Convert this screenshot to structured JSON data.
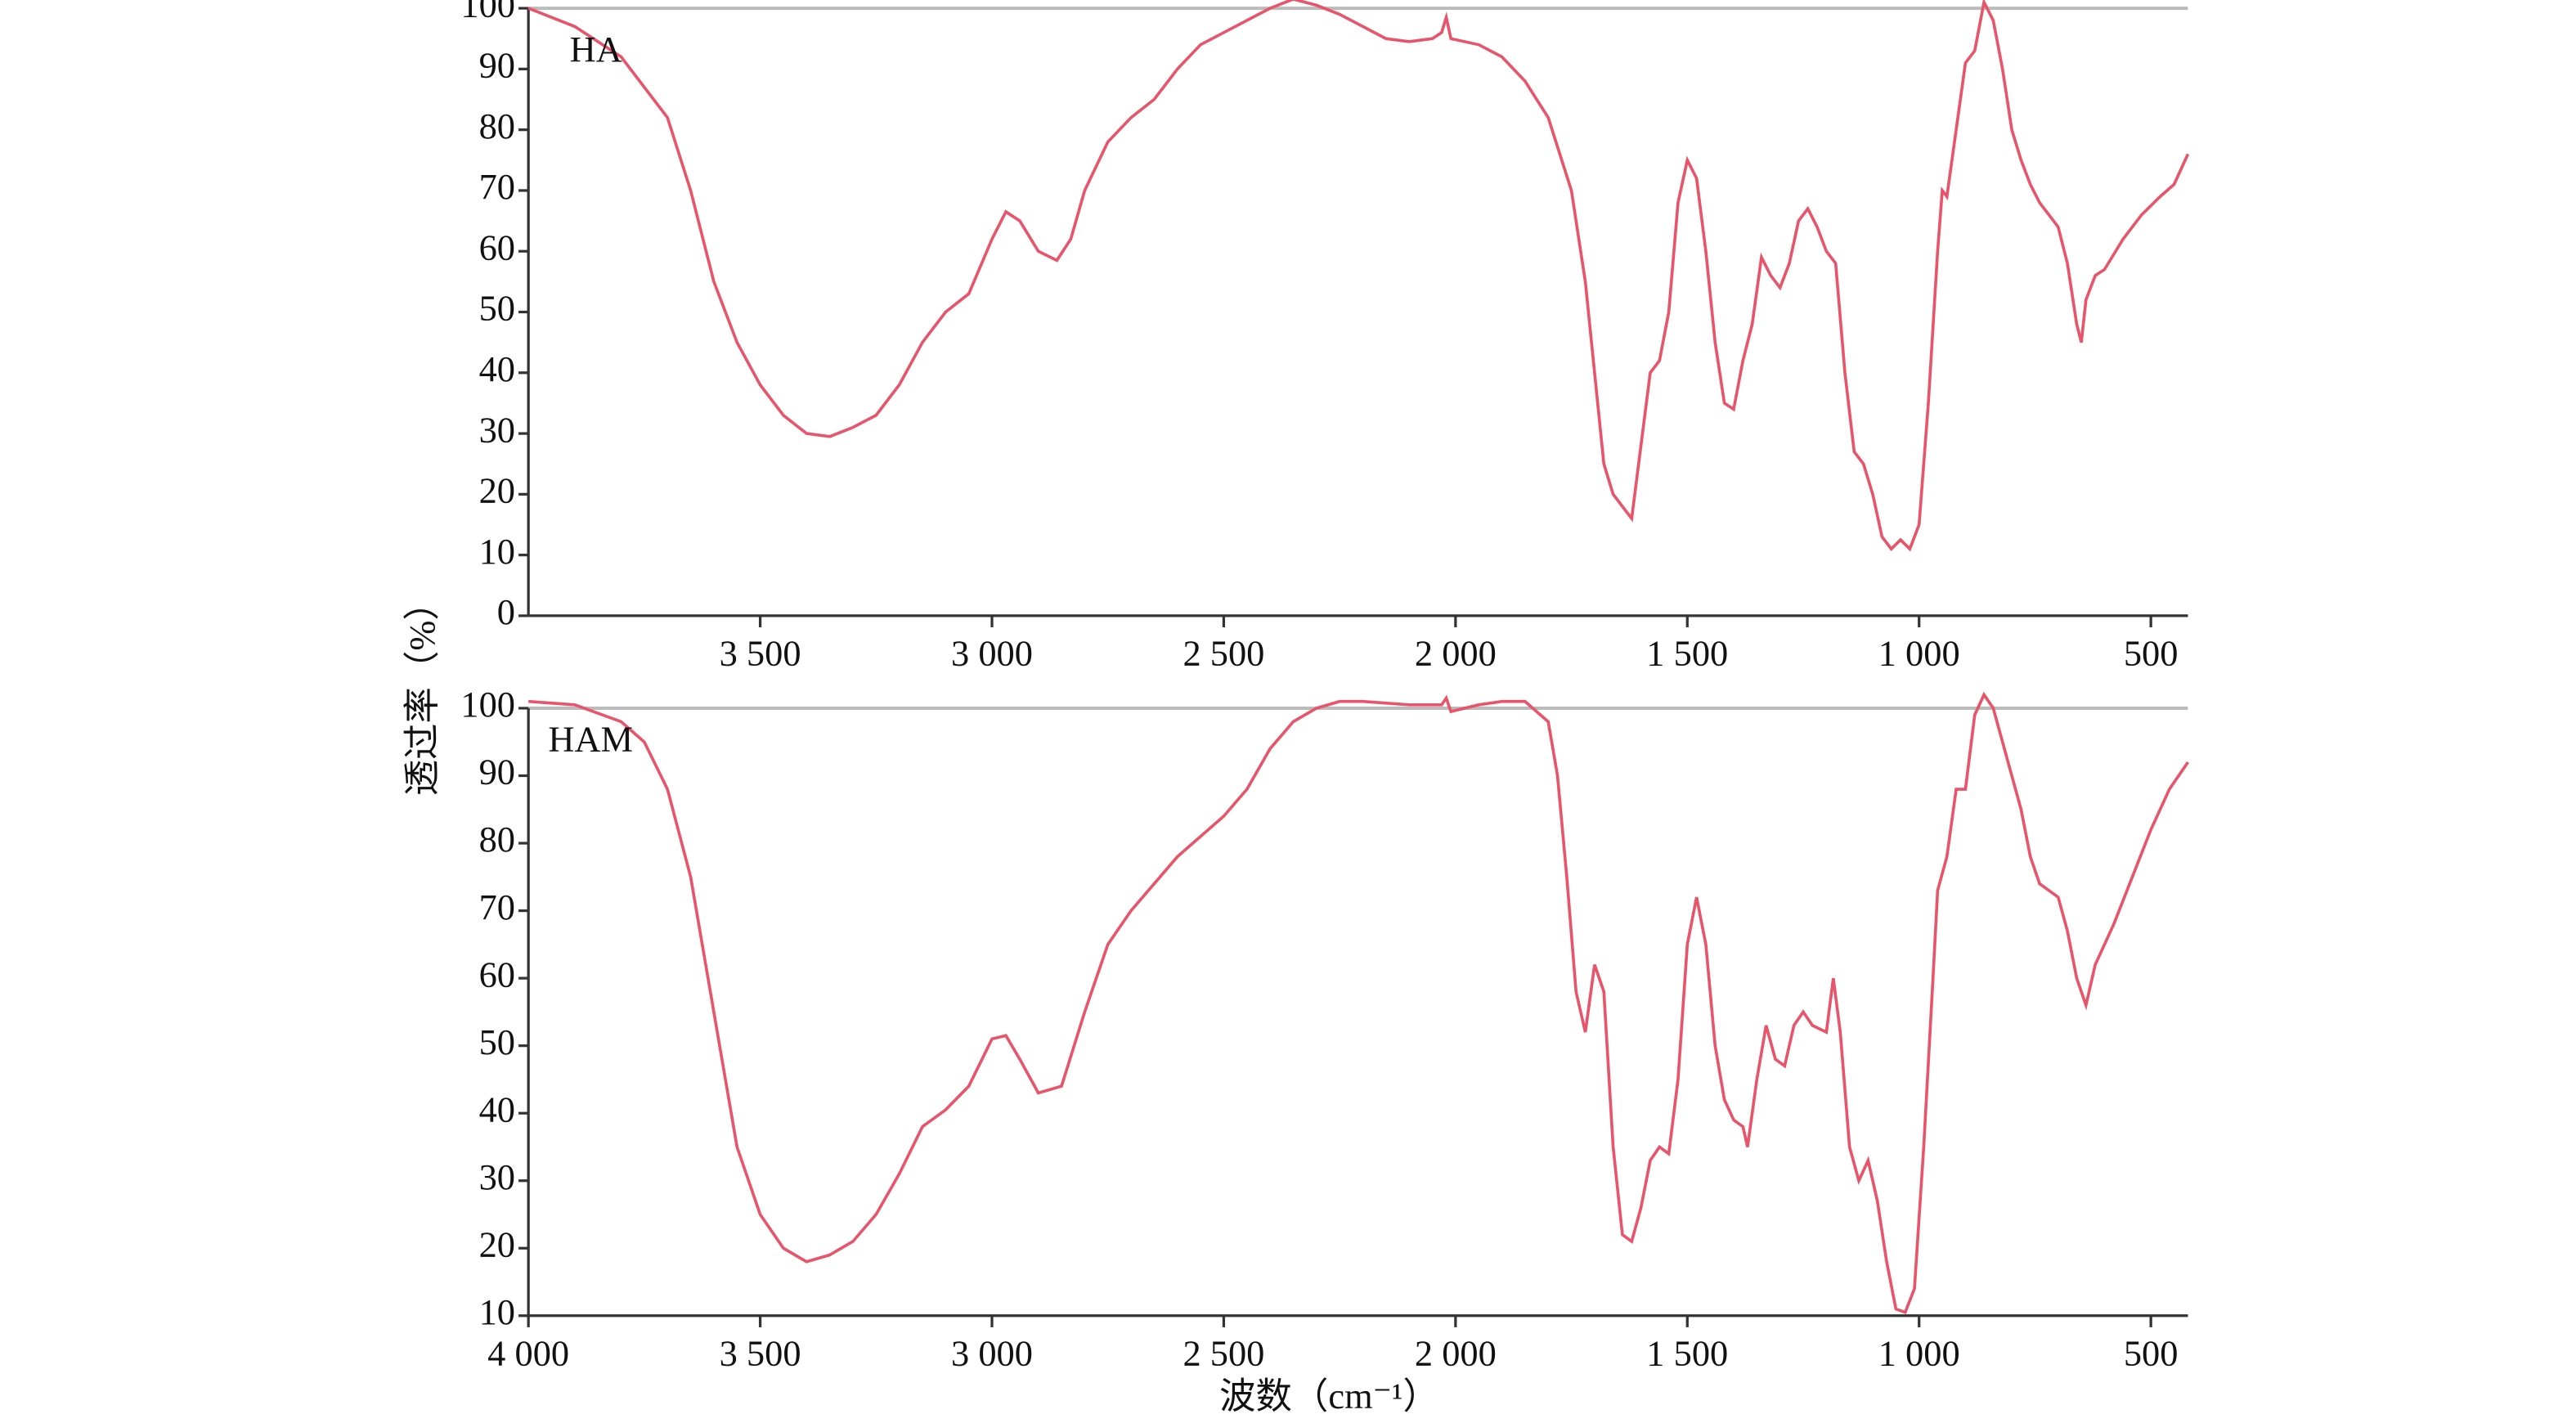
{
  "ylabel": "透过率（%）",
  "xlabel": "波数（cm⁻¹）",
  "chart_data": [
    {
      "type": "line",
      "x": [
        4000,
        3900,
        3800,
        3700,
        3650,
        3600,
        3550,
        3500,
        3450,
        3400,
        3350,
        3300,
        3250,
        3200,
        3150,
        3100,
        3050,
        3000,
        2970,
        2940,
        2900,
        2860,
        2830,
        2800,
        2750,
        2700,
        2650,
        2600,
        2550,
        2500,
        2450,
        2400,
        2350,
        2300,
        2250,
        2200,
        2150,
        2100,
        2050,
        2030,
        2020,
        2010,
        1950,
        1900,
        1850,
        1800,
        1750,
        1720,
        1700,
        1680,
        1660,
        1640,
        1620,
        1600,
        1580,
        1560,
        1540,
        1520,
        1500,
        1480,
        1460,
        1440,
        1420,
        1400,
        1380,
        1360,
        1340,
        1320,
        1300,
        1280,
        1260,
        1240,
        1220,
        1200,
        1180,
        1160,
        1140,
        1120,
        1100,
        1080,
        1060,
        1040,
        1020,
        1000,
        980,
        960,
        950,
        940,
        920,
        900,
        880,
        860,
        840,
        820,
        800,
        780,
        760,
        740,
        720,
        700,
        680,
        660,
        650,
        640,
        620,
        600,
        560,
        520,
        480,
        450,
        420
      ],
      "series": [
        {
          "name": "HA",
          "color": "#e8556a",
          "values": [
            100,
            97,
            92,
            82,
            70,
            55,
            45,
            38,
            33,
            30,
            29.5,
            31,
            33,
            38,
            45,
            50,
            53,
            62,
            66.5,
            65,
            60,
            58.5,
            62,
            70,
            78,
            82,
            85,
            90,
            94,
            96,
            98,
            100,
            101.5,
            100.5,
            99,
            97,
            95,
            94.5,
            95,
            96,
            98.5,
            95,
            94,
            92,
            88,
            82,
            70,
            55,
            40,
            25,
            20,
            18,
            16,
            28,
            40,
            42,
            50,
            68,
            75,
            72,
            60,
            45,
            35,
            34,
            42,
            48,
            59,
            56,
            54,
            58,
            65,
            67,
            64,
            60,
            58,
            40,
            27,
            25,
            20,
            13,
            11,
            12.5,
            11,
            15,
            35,
            60,
            70,
            69,
            80,
            91,
            93,
            101,
            98,
            90,
            80,
            75,
            71,
            68,
            66,
            64,
            58,
            48,
            45,
            52,
            56,
            57,
            62,
            66,
            69,
            71,
            76
          ]
        }
      ],
      "xlim": [
        4000,
        420
      ],
      "ylim": [
        0,
        100
      ],
      "xticks": [
        {
          "value": 3500,
          "label": "3 500"
        },
        {
          "value": 3000,
          "label": "3 000"
        },
        {
          "value": 2500,
          "label": "2 500"
        },
        {
          "value": 2000,
          "label": "2 000"
        },
        {
          "value": 1500,
          "label": "1 500"
        },
        {
          "value": 1000,
          "label": "1 000"
        },
        500
      ],
      "yticks": [
        0,
        10,
        20,
        30,
        40,
        50,
        60,
        70,
        80,
        90,
        100
      ]
    },
    {
      "type": "line",
      "x": [
        4000,
        3900,
        3800,
        3750,
        3700,
        3650,
        3600,
        3550,
        3500,
        3450,
        3400,
        3350,
        3300,
        3250,
        3200,
        3150,
        3100,
        3050,
        3000,
        2970,
        2940,
        2900,
        2850,
        2800,
        2750,
        2700,
        2650,
        2600,
        2550,
        2500,
        2450,
        2400,
        2350,
        2300,
        2250,
        2200,
        2100,
        2030,
        2020,
        2010,
        1950,
        1900,
        1850,
        1800,
        1780,
        1760,
        1740,
        1720,
        1700,
        1680,
        1660,
        1640,
        1620,
        1600,
        1580,
        1560,
        1540,
        1520,
        1500,
        1480,
        1460,
        1440,
        1420,
        1400,
        1380,
        1370,
        1350,
        1330,
        1310,
        1290,
        1270,
        1250,
        1230,
        1200,
        1185,
        1170,
        1150,
        1130,
        1110,
        1090,
        1070,
        1050,
        1030,
        1010,
        990,
        970,
        960,
        940,
        920,
        900,
        880,
        860,
        840,
        820,
        800,
        780,
        760,
        740,
        720,
        700,
        680,
        660,
        640,
        620,
        600,
        580,
        540,
        500,
        460,
        420
      ],
      "series": [
        {
          "name": "HAM",
          "color": "#e8556a",
          "values": [
            101,
            100.5,
            98,
            95,
            88,
            75,
            55,
            35,
            25,
            20,
            18,
            19,
            21,
            25,
            31,
            38,
            40.5,
            44,
            51,
            51.5,
            48,
            43,
            44,
            55,
            65,
            70,
            74,
            78,
            81,
            84,
            88,
            94,
            98,
            100,
            101,
            101,
            100.5,
            100.5,
            101.5,
            99.5,
            100.5,
            101,
            101,
            98,
            90,
            75,
            58,
            52,
            62,
            58,
            35,
            22,
            21,
            26,
            33,
            35,
            34,
            45,
            65,
            72,
            65,
            50,
            42,
            39,
            38,
            35,
            45,
            53,
            48,
            47,
            53,
            55,
            53,
            52,
            60,
            52,
            35,
            30,
            33,
            27,
            18,
            11,
            10.5,
            14,
            35,
            60,
            73,
            78,
            88,
            88,
            99,
            102,
            100,
            95,
            90,
            85,
            78,
            74,
            73,
            72,
            67,
            60,
            56,
            62,
            65,
            68,
            75,
            82,
            88,
            92
          ]
        }
      ],
      "xlim": [
        4000,
        420
      ],
      "ylim": [
        10,
        100
      ],
      "xticks": [
        {
          "value": 4000,
          "label": "4 000"
        },
        {
          "value": 3500,
          "label": "3 500"
        },
        {
          "value": 3000,
          "label": "3 000"
        },
        {
          "value": 2500,
          "label": "2 500"
        },
        {
          "value": 2000,
          "label": "2 000"
        },
        {
          "value": 1500,
          "label": "1 500"
        },
        {
          "value": 1000,
          "label": "1 000"
        },
        500
      ],
      "yticks": [
        10,
        20,
        30,
        40,
        50,
        60,
        70,
        80,
        90,
        100
      ]
    }
  ]
}
